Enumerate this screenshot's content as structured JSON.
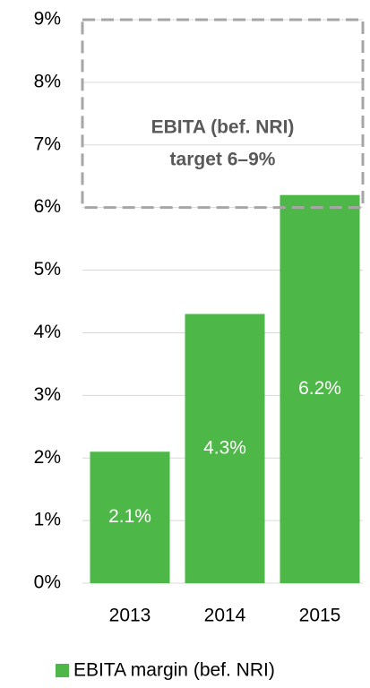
{
  "chart_data": {
    "type": "bar",
    "categories": [
      "2013",
      "2014",
      "2015"
    ],
    "series": [
      {
        "name": "EBITA margin (bef. NRI)",
        "color": "#4db848",
        "values": [
          2.1,
          4.3,
          6.2
        ],
        "value_labels": [
          "2.1%",
          "4.3%",
          "6.2%"
        ]
      }
    ],
    "ylim": [
      0,
      9
    ],
    "yticks": [
      {
        "value": 0,
        "label": "0%"
      },
      {
        "value": 1,
        "label": "1%"
      },
      {
        "value": 2,
        "label": "2%"
      },
      {
        "value": 3,
        "label": "3%"
      },
      {
        "value": 4,
        "label": "4%"
      },
      {
        "value": 5,
        "label": "5%"
      },
      {
        "value": 6,
        "label": "6%"
      },
      {
        "value": 7,
        "label": "7%"
      },
      {
        "value": 8,
        "label": "8%"
      },
      {
        "value": 9,
        "label": "9%"
      }
    ],
    "grid": true,
    "annotation": {
      "lines": [
        "EBITA (bef. NRI)",
        "target 6–9%"
      ],
      "range": [
        6,
        9
      ]
    },
    "legend": "bottom"
  }
}
